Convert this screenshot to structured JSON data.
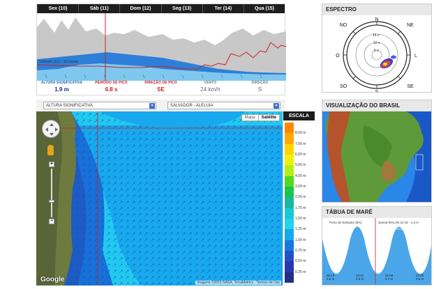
{
  "timeseries": {
    "days": [
      "Sex (10)",
      "Sáb (11)",
      "Dom (12)",
      "Seg (13)",
      "Ter (14)",
      "Qua (15)"
    ],
    "cursor_label": "Sábado (11) - 10 horas",
    "stats": [
      {
        "label": "ALTURA SIGNIFICATIVA",
        "value": "1.9 m"
      },
      {
        "label": "PERÍODO DE PICO",
        "value": "6.8 s"
      },
      {
        "label": "DIREÇÃO DE PICO",
        "value": "SE"
      },
      {
        "label": "VENTO",
        "value": "24 km/h"
      },
      {
        "label": "DIREÇÃO",
        "value": "S"
      }
    ]
  },
  "controls": {
    "variable_select": "ALTURA SIGNIFICATIVA",
    "location_select": "SALVADOR - ALELUIA"
  },
  "map": {
    "type_buttons": [
      "Mapa",
      "Satélite"
    ],
    "attribution": "Imagens ©2015 NASA, TerraMetrics · Termos de Uso",
    "google_logo": "Google",
    "zoom_in": "+",
    "zoom_out": "−"
  },
  "scale": {
    "title": "ESCALA",
    "labels": [
      "8,00 m",
      "7,00 m",
      "6,00 m",
      "5,00 m",
      "4,00 m",
      "3,00 m",
      "2,00 m",
      "1,75 m",
      "1,50 m",
      "1,25 m",
      "1,00 m",
      "0,75 m",
      "0,50 m",
      "0,25 m"
    ],
    "colors": [
      "#ff8800",
      "#ffaa00",
      "#ffd400",
      "#eef20a",
      "#b5ee1a",
      "#55d822",
      "#19c64a",
      "#1ab8a0",
      "#18c8d8",
      "#22d2ee",
      "#18a8ee",
      "#1878e0",
      "#2250cc",
      "#2a38b0",
      "#222f8a"
    ]
  },
  "spectrum": {
    "title": "ESPECTRO",
    "directions": [
      "N",
      "NE",
      "L",
      "SE",
      "S",
      "SO",
      "O",
      "NO"
    ],
    "rings": [
      "15 s",
      "10 s",
      "5 s"
    ]
  },
  "brasil": {
    "title": "VISUALIZAÇÃO DO BRASIL"
  },
  "tide": {
    "title": "TÁBUA DE MARÉ",
    "location": "Porto de Salvador (BA)",
    "cursor_label": "Quinta-feira (9) 22:15 - 1.3 m",
    "day_labels": [
      "nta-feira (9)",
      "Sexta-feira (10)"
    ],
    "events": [
      {
        "time": "00:19",
        "height": "0.6 m"
      },
      {
        "time": "12:41",
        "height": "0.6 m"
      },
      {
        "time": "01:08",
        "height": "0.7 m"
      },
      {
        "time": "13:30",
        "height": "0.6 m"
      }
    ]
  }
}
